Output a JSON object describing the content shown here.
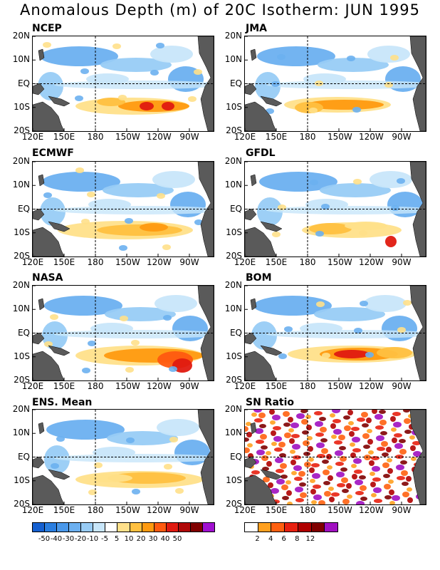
{
  "title": "Anomalous Depth (m) of 20C Isotherm: JUN 1995",
  "lat_labels": [
    "20N",
    "10N",
    "EQ",
    "10S",
    "20S"
  ],
  "lon_labels": [
    "120E",
    "150E",
    "180",
    "150W",
    "120W",
    "90W"
  ],
  "panels": [
    {
      "name": "NCEP",
      "kind": "anomaly"
    },
    {
      "name": "JMA",
      "kind": "anomaly"
    },
    {
      "name": "ECMWF",
      "kind": "anomaly"
    },
    {
      "name": "GFDL",
      "kind": "anomaly"
    },
    {
      "name": "NASA",
      "kind": "anomaly"
    },
    {
      "name": "BOM",
      "kind": "anomaly"
    },
    {
      "name": "ENS. Mean",
      "kind": "anomaly"
    },
    {
      "name": "SN Ratio",
      "kind": "ratio"
    }
  ],
  "colors": {
    "land": "#5a5a5a",
    "anomaly_scale": [
      "#1560d0",
      "#2a7ee0",
      "#4a98ea",
      "#6cb0f0",
      "#98ccf6",
      "#c8e6fa",
      "#ffffff",
      "#ffe08a",
      "#ffc040",
      "#ff9a10",
      "#ff5a10",
      "#e01a10",
      "#b00808",
      "#800000",
      "#a010d0"
    ],
    "ratio_scale": [
      "#ffffff",
      "#ffa020",
      "#ff6010",
      "#e82010",
      "#b00000",
      "#800000",
      "#a010c0"
    ]
  },
  "anomaly_ticks": [
    "-50",
    "-40",
    "-30",
    "-20",
    "-10",
    "-5",
    "5",
    "10",
    "20",
    "30",
    "40",
    "50"
  ],
  "ratio_ticks": [
    "2",
    "4",
    "6",
    "8",
    "12"
  ]
}
